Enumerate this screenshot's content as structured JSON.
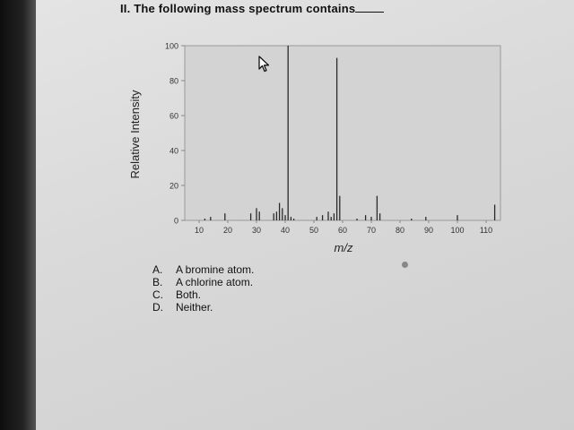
{
  "question": {
    "text": "II. The following mass spectrum contains"
  },
  "chart_data": {
    "type": "bar",
    "title": "",
    "xlabel": "m/z",
    "ylabel": "Relative Intensity",
    "xlim": [
      5,
      115
    ],
    "ylim": [
      0,
      100
    ],
    "x_ticks": [
      "10",
      "20",
      "30",
      "40",
      "50",
      "60",
      "70",
      "80",
      "90",
      "100",
      "110"
    ],
    "y_ticks": [
      "0",
      "20",
      "40",
      "60",
      "80",
      "100"
    ],
    "grid": false,
    "peaks": [
      {
        "x": 12,
        "y": 1
      },
      {
        "x": 14,
        "y": 2
      },
      {
        "x": 19,
        "y": 4
      },
      {
        "x": 28,
        "y": 4
      },
      {
        "x": 30,
        "y": 7
      },
      {
        "x": 31,
        "y": 5
      },
      {
        "x": 36,
        "y": 4
      },
      {
        "x": 37,
        "y": 5
      },
      {
        "x": 38,
        "y": 10
      },
      {
        "x": 39,
        "y": 7
      },
      {
        "x": 40,
        "y": 3
      },
      {
        "x": 41,
        "y": 100
      },
      {
        "x": 42,
        "y": 2
      },
      {
        "x": 43,
        "y": 1
      },
      {
        "x": 51,
        "y": 2
      },
      {
        "x": 53,
        "y": 3
      },
      {
        "x": 55,
        "y": 5
      },
      {
        "x": 56,
        "y": 2
      },
      {
        "x": 57,
        "y": 4
      },
      {
        "x": 58,
        "y": 93
      },
      {
        "x": 59,
        "y": 14
      },
      {
        "x": 65,
        "y": 1
      },
      {
        "x": 68,
        "y": 3
      },
      {
        "x": 70,
        "y": 2
      },
      {
        "x": 72,
        "y": 14
      },
      {
        "x": 73,
        "y": 4
      },
      {
        "x": 84,
        "y": 1
      },
      {
        "x": 89,
        "y": 2
      },
      {
        "x": 100,
        "y": 3
      },
      {
        "x": 113,
        "y": 9
      }
    ]
  },
  "choices": [
    {
      "letter": "A.",
      "text": "A bromine atom."
    },
    {
      "letter": "B.",
      "text": "A chlorine atom."
    },
    {
      "letter": "C.",
      "text": "Both."
    },
    {
      "letter": "D.",
      "text": "Neither."
    }
  ],
  "colors": {
    "ink": "#222222",
    "axis": "#8a8a8a",
    "bar": "#2a2a2a"
  },
  "icons": {
    "cursor": "arrow-cursor-icon"
  }
}
